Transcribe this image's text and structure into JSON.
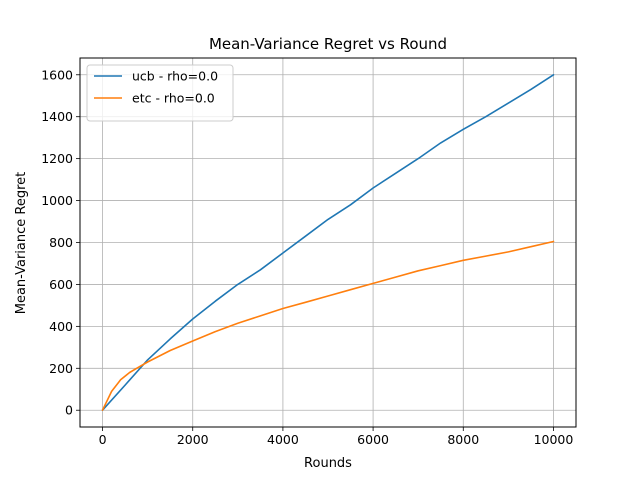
{
  "chart_data": {
    "type": "line",
    "title": "Mean-Variance Regret vs Round",
    "xlabel": "Rounds",
    "ylabel": "Mean-Variance Regret",
    "xlim": [
      -500,
      10500
    ],
    "ylim": [
      -80,
      1680
    ],
    "xticks": [
      0,
      2000,
      4000,
      6000,
      8000,
      10000
    ],
    "yticks": [
      0,
      200,
      400,
      600,
      800,
      1000,
      1200,
      1400,
      1600
    ],
    "grid": true,
    "legend_position": "top-left",
    "series": [
      {
        "name": "ucb - rho=0.0",
        "color": "#1f77b4",
        "x": [
          0,
          500,
          1000,
          1500,
          2000,
          2500,
          3000,
          3500,
          4000,
          4500,
          5000,
          5500,
          6000,
          6500,
          7000,
          7500,
          8000,
          8500,
          9000,
          9500,
          10000
        ],
        "y": [
          0,
          120,
          240,
          340,
          435,
          520,
          600,
          670,
          750,
          830,
          910,
          980,
          1060,
          1130,
          1200,
          1275,
          1340,
          1400,
          1465,
          1530,
          1600
        ]
      },
      {
        "name": "etc - rho=0.0",
        "color": "#ff7f0e",
        "x": [
          0,
          200,
          400,
          600,
          800,
          1000,
          1500,
          2000,
          2500,
          3000,
          3500,
          4000,
          4500,
          5000,
          5500,
          6000,
          6500,
          7000,
          7500,
          8000,
          8500,
          9000,
          9500,
          10000
        ],
        "y": [
          0,
          90,
          145,
          180,
          205,
          230,
          285,
          330,
          375,
          415,
          450,
          485,
          515,
          545,
          575,
          605,
          635,
          665,
          690,
          715,
          735,
          755,
          780,
          805
        ]
      }
    ]
  }
}
